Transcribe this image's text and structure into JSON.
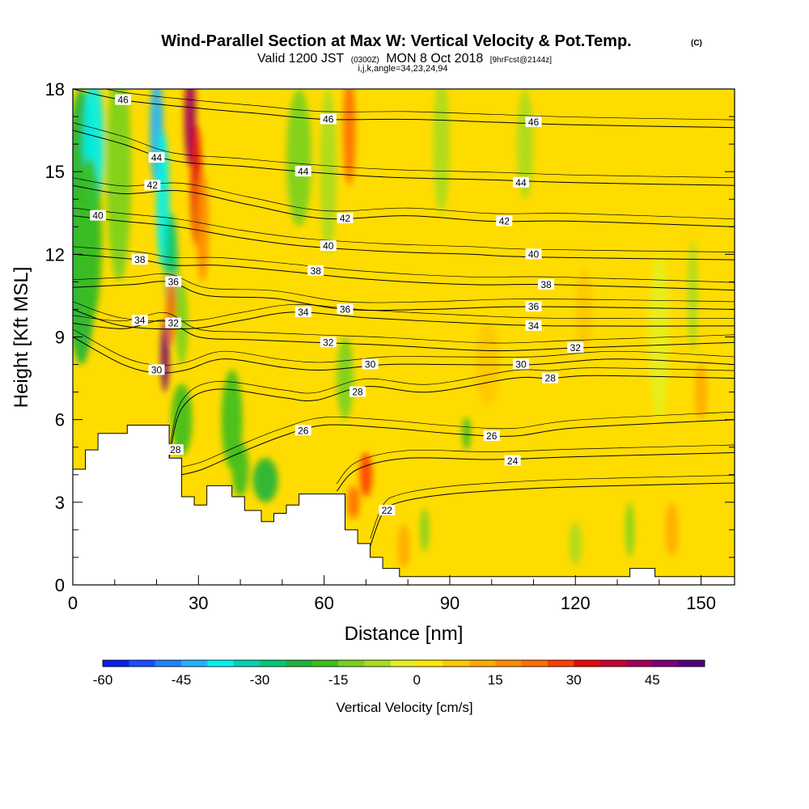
{
  "header": {
    "title": "Wind-Parallel Section at Max W: Vertical Velocity & Pot.Temp.",
    "title_mark": "(C)",
    "subtitle_a": "Valid 1200 JST",
    "subtitle_b": "(0300Z)",
    "subtitle_c": "MON 8 Oct 2018",
    "subtitle_d": "[9hrFcst@2144z]",
    "subtitle_e": "i,j,k,angle=34,23,24,94"
  },
  "chart_data": {
    "type": "heatmap",
    "xlabel": "Distance [nm]",
    "ylabel": "Height [Kft MSL]",
    "xlim": [
      0,
      158
    ],
    "ylim": [
      0,
      18
    ],
    "x_ticks": [
      0,
      30,
      60,
      90,
      120,
      150
    ],
    "y_ticks": [
      0,
      3,
      6,
      9,
      12,
      15,
      18
    ],
    "colorbar": {
      "label": "Vertical Velocity [cm/s]",
      "range": [
        -60,
        55
      ],
      "tick_values": [
        -60,
        -45,
        -30,
        -15,
        0,
        15,
        30,
        45
      ],
      "colors": [
        "#0a1ef0",
        "#1450ff",
        "#1e82ff",
        "#1eb4ff",
        "#00f0f0",
        "#00d2b4",
        "#00c878",
        "#1eb43c",
        "#3cbe1e",
        "#78d21e",
        "#aadc1e",
        "#e6f01e",
        "#ffe600",
        "#ffc800",
        "#ffaa00",
        "#ff8c00",
        "#ff6e00",
        "#ff3c00",
        "#e60a0a",
        "#c80032",
        "#a0005a",
        "#780078",
        "#50007d"
      ]
    },
    "terrain_kft": [
      [
        0,
        4.2
      ],
      [
        3,
        4.2
      ],
      [
        3,
        4.9
      ],
      [
        6,
        4.9
      ],
      [
        6,
        5.5
      ],
      [
        13,
        5.5
      ],
      [
        13,
        5.8
      ],
      [
        23,
        5.8
      ],
      [
        23,
        4.6
      ],
      [
        26,
        4.6
      ],
      [
        26,
        3.2
      ],
      [
        29,
        3.2
      ],
      [
        29,
        2.9
      ],
      [
        32,
        2.9
      ],
      [
        32,
        3.6
      ],
      [
        38,
        3.6
      ],
      [
        38,
        3.2
      ],
      [
        41,
        3.2
      ],
      [
        41,
        2.7
      ],
      [
        45,
        2.7
      ],
      [
        45,
        2.3
      ],
      [
        48,
        2.3
      ],
      [
        48,
        2.6
      ],
      [
        51,
        2.6
      ],
      [
        51,
        2.9
      ],
      [
        54,
        2.9
      ],
      [
        54,
        3.3
      ],
      [
        65,
        3.3
      ],
      [
        65,
        2.0
      ],
      [
        68,
        2.0
      ],
      [
        68,
        1.5
      ],
      [
        71,
        1.5
      ],
      [
        71,
        1.0
      ],
      [
        74,
        1.0
      ],
      [
        74,
        0.6
      ],
      [
        78,
        0.6
      ],
      [
        78,
        0.3
      ],
      [
        133,
        0.3
      ],
      [
        133,
        0.6
      ],
      [
        139,
        0.6
      ],
      [
        139,
        0.3
      ],
      [
        158,
        0.3
      ]
    ],
    "w_features": [
      {
        "x": 2,
        "z": 13,
        "value": -22,
        "sx": 4,
        "sz": 5
      },
      {
        "x": 5,
        "z": 16,
        "value": -38,
        "sx": 2.5,
        "sz": 2.5
      },
      {
        "x": 4,
        "z": 12.5,
        "value": -20,
        "sx": 3,
        "sz": 3
      },
      {
        "x": 11,
        "z": 15,
        "value": -12,
        "sx": 3,
        "sz": 4
      },
      {
        "x": 20,
        "z": 16.5,
        "value": -45,
        "sx": 1.6,
        "sz": 2
      },
      {
        "x": 21.5,
        "z": 14,
        "value": -40,
        "sx": 1.6,
        "sz": 2.5
      },
      {
        "x": 23.5,
        "z": 11.5,
        "value": -30,
        "sx": 1.6,
        "sz": 2
      },
      {
        "x": 26,
        "z": 9.5,
        "value": -15,
        "sx": 1.5,
        "sz": 1.5
      },
      {
        "x": 28,
        "z": 17,
        "value": 42,
        "sx": 1.4,
        "sz": 1.8
      },
      {
        "x": 29.5,
        "z": 14.5,
        "value": 32,
        "sx": 1.3,
        "sz": 2.2
      },
      {
        "x": 22,
        "z": 8.3,
        "value": 48,
        "sx": 1.0,
        "sz": 1.3
      },
      {
        "x": 23.5,
        "z": 10,
        "value": 22,
        "sx": 1.2,
        "sz": 1.3
      },
      {
        "x": 31,
        "z": 13,
        "value": 18,
        "sx": 1.5,
        "sz": 2
      },
      {
        "x": 26,
        "z": 6,
        "value": -18,
        "sx": 2.5,
        "sz": 1.3
      },
      {
        "x": 38,
        "z": 6,
        "value": -16,
        "sx": 2.5,
        "sz": 1.8
      },
      {
        "x": 46,
        "z": 3.8,
        "value": -22,
        "sx": 3,
        "sz": 0.8
      },
      {
        "x": 40,
        "z": 4.2,
        "value": -18,
        "sx": 2,
        "sz": 1
      },
      {
        "x": 54,
        "z": 15.5,
        "value": -14,
        "sx": 3,
        "sz": 2.5
      },
      {
        "x": 61,
        "z": 15,
        "value": -10,
        "sx": 2,
        "sz": 3
      },
      {
        "x": 66,
        "z": 16.5,
        "value": 20,
        "sx": 1.5,
        "sz": 2
      },
      {
        "x": 70,
        "z": 4,
        "value": 25,
        "sx": 1.5,
        "sz": 0.8
      },
      {
        "x": 67,
        "z": 3,
        "value": 20,
        "sx": 1.5,
        "sz": 0.6
      },
      {
        "x": 65,
        "z": 7.5,
        "value": -12,
        "sx": 2,
        "sz": 1.5
      },
      {
        "x": 94,
        "z": 5.5,
        "value": -18,
        "sx": 1,
        "sz": 0.6
      },
      {
        "x": 88,
        "z": 16,
        "value": -10,
        "sx": 2,
        "sz": 2.5
      },
      {
        "x": 108,
        "z": 16,
        "value": -6,
        "sx": 2,
        "sz": 2
      },
      {
        "x": 122,
        "z": 10,
        "value": 6,
        "sx": 2,
        "sz": 1.5
      },
      {
        "x": 140,
        "z": 9,
        "value": -5,
        "sx": 2.5,
        "sz": 3
      },
      {
        "x": 148,
        "z": 10.5,
        "value": -10,
        "sx": 1.2,
        "sz": 2
      },
      {
        "x": 150,
        "z": 7,
        "value": 12,
        "sx": 1.5,
        "sz": 1
      },
      {
        "x": 143,
        "z": 2,
        "value": 12,
        "sx": 1.5,
        "sz": 1
      },
      {
        "x": 133,
        "z": 2,
        "value": -12,
        "sx": 1,
        "sz": 1
      },
      {
        "x": 120,
        "z": 1.5,
        "value": -10,
        "sx": 1.5,
        "sz": 0.8
      },
      {
        "x": 84,
        "z": 2,
        "value": -12,
        "sx": 1,
        "sz": 0.8
      },
      {
        "x": 79,
        "z": 1.4,
        "value": 12,
        "sx": 1.5,
        "sz": 0.8
      },
      {
        "x": 99,
        "z": 8,
        "value": 6,
        "sx": 3,
        "sz": 1.5
      }
    ],
    "isotherms": [
      {
        "label": "22",
        "points": [
          [
            71,
            1.4
          ],
          [
            74,
            2.6
          ],
          [
            78,
            3.0
          ],
          [
            90,
            3.3
          ],
          [
            110,
            3.5
          ],
          [
            130,
            3.6
          ],
          [
            158,
            3.7
          ]
        ],
        "label_at": [
          75,
          2.7
        ]
      },
      {
        "label": "24",
        "points": [
          [
            63,
            3.4
          ],
          [
            68,
            4.2
          ],
          [
            80,
            4.6
          ],
          [
            100,
            4.55
          ],
          [
            120,
            4.65
          ],
          [
            158,
            4.8
          ]
        ],
        "label_at": [
          105,
          4.5
        ]
      },
      {
        "label": "26",
        "points": [
          [
            26,
            4.0
          ],
          [
            31,
            4.2
          ],
          [
            40,
            4.8
          ],
          [
            50,
            5.4
          ],
          [
            60,
            5.8
          ],
          [
            75,
            5.7
          ],
          [
            90,
            5.5
          ],
          [
            105,
            5.4
          ],
          [
            120,
            5.7
          ],
          [
            158,
            6.0
          ]
        ],
        "label_at": [
          55,
          5.6
        ]
      },
      {
        "label": "28",
        "points": [
          [
            23,
            4.6
          ],
          [
            26,
            6.4
          ],
          [
            34,
            7.1
          ],
          [
            50,
            6.8
          ],
          [
            58,
            6.7
          ],
          [
            70,
            7.2
          ],
          [
            85,
            7.0
          ],
          [
            105,
            7.5
          ],
          [
            114,
            7.5
          ],
          [
            125,
            7.6
          ],
          [
            158,
            7.5
          ]
        ],
        "label_at": [
          68,
          7.0
        ]
      },
      {
        "label": "30",
        "points": [
          [
            0,
            9.0
          ],
          [
            12,
            8.0
          ],
          [
            20,
            7.7
          ],
          [
            27,
            7.8
          ],
          [
            36,
            8.2
          ],
          [
            50,
            7.9
          ],
          [
            60,
            7.8
          ],
          [
            75,
            8.0
          ],
          [
            90,
            8.0
          ],
          [
            110,
            8.0
          ],
          [
            130,
            8.2
          ],
          [
            158,
            8.0
          ]
        ],
        "label_at": [
          20,
          7.8
        ]
      },
      {
        "label": "32",
        "points": [
          [
            0,
            9.5
          ],
          [
            12,
            9.3
          ],
          [
            22,
            9.6
          ],
          [
            30,
            9.0
          ],
          [
            42,
            8.9
          ],
          [
            58,
            8.8
          ],
          [
            75,
            8.7
          ],
          [
            100,
            8.5
          ],
          [
            120,
            8.6
          ],
          [
            158,
            8.8
          ]
        ],
        "label_at": [
          24,
          9.5
        ]
      },
      {
        "label": "34",
        "points": [
          [
            0,
            10.0
          ],
          [
            12,
            9.4
          ],
          [
            28,
            9.3
          ],
          [
            40,
            9.6
          ],
          [
            53,
            9.9
          ],
          [
            70,
            9.7
          ],
          [
            95,
            9.5
          ],
          [
            115,
            9.4
          ],
          [
            158,
            9.4
          ]
        ],
        "label_at": [
          16,
          9.6
        ]
      },
      {
        "label": "36",
        "points": [
          [
            0,
            10.8
          ],
          [
            14,
            10.9
          ],
          [
            23,
            11.0
          ],
          [
            32,
            10.5
          ],
          [
            48,
            10.4
          ],
          [
            65,
            10.0
          ],
          [
            85,
            10.0
          ],
          [
            110,
            10.1
          ],
          [
            158,
            10.0
          ]
        ],
        "label_at": [
          24,
          11.0
        ]
      },
      {
        "label": "38",
        "points": [
          [
            0,
            12.0
          ],
          [
            16,
            11.8
          ],
          [
            24,
            11.6
          ],
          [
            35,
            11.6
          ],
          [
            50,
            11.4
          ],
          [
            70,
            11.1
          ],
          [
            95,
            10.9
          ],
          [
            115,
            10.9
          ],
          [
            158,
            10.7
          ]
        ],
        "label_at": [
          16,
          11.8
        ]
      },
      {
        "label": "40",
        "points": [
          [
            0,
            13.4
          ],
          [
            12,
            13.2
          ],
          [
            25,
            13.0
          ],
          [
            40,
            12.6
          ],
          [
            55,
            12.3
          ],
          [
            75,
            12.1
          ],
          [
            95,
            12.0
          ],
          [
            110,
            11.9
          ],
          [
            158,
            11.8
          ]
        ],
        "label_at": [
          6,
          13.4
        ]
      },
      {
        "label": "42",
        "points": [
          [
            0,
            14.5
          ],
          [
            12,
            14.2
          ],
          [
            26,
            14.3
          ],
          [
            42,
            13.8
          ],
          [
            60,
            13.3
          ],
          [
            80,
            13.4
          ],
          [
            100,
            13.2
          ],
          [
            120,
            13.2
          ],
          [
            158,
            13.0
          ]
        ],
        "label_at": [
          19,
          14.5
        ]
      },
      {
        "label": "44",
        "points": [
          [
            0,
            16.5
          ],
          [
            12,
            16.0
          ],
          [
            24,
            15.4
          ],
          [
            40,
            15.2
          ],
          [
            55,
            15.0
          ],
          [
            75,
            14.8
          ],
          [
            100,
            14.7
          ],
          [
            120,
            14.6
          ],
          [
            158,
            14.5
          ]
        ],
        "label_at": [
          20,
          15.5
        ]
      },
      {
        "label": "46",
        "points": [
          [
            0,
            18.0
          ],
          [
            12,
            17.6
          ],
          [
            30,
            17.3
          ],
          [
            45,
            17.1
          ],
          [
            60,
            16.9
          ],
          [
            80,
            16.9
          ],
          [
            100,
            16.8
          ],
          [
            120,
            16.7
          ],
          [
            158,
            16.6
          ]
        ],
        "label_at": [
          12,
          17.6
        ]
      }
    ],
    "extra_labels": [
      {
        "label": "46",
        "x": 61,
        "z": 16.9
      },
      {
        "label": "46",
        "x": 110,
        "z": 16.8
      },
      {
        "label": "44",
        "x": 55,
        "z": 15.0
      },
      {
        "label": "44",
        "x": 107,
        "z": 14.6
      },
      {
        "label": "42",
        "x": 65,
        "z": 13.3
      },
      {
        "label": "42",
        "x": 103,
        "z": 13.2
      },
      {
        "label": "40",
        "x": 61,
        "z": 12.3
      },
      {
        "label": "40",
        "x": 110,
        "z": 12.0
      },
      {
        "label": "38",
        "x": 58,
        "z": 11.4
      },
      {
        "label": "38",
        "x": 113,
        "z": 10.9
      },
      {
        "label": "36",
        "x": 65,
        "z": 10.0
      },
      {
        "label": "36",
        "x": 110,
        "z": 10.1
      },
      {
        "label": "34",
        "x": 55,
        "z": 9.9
      },
      {
        "label": "34",
        "x": 110,
        "z": 9.4
      },
      {
        "label": "32",
        "x": 61,
        "z": 8.8
      },
      {
        "label": "32",
        "x": 120,
        "z": 8.6
      },
      {
        "label": "30",
        "x": 71,
        "z": 8.0
      },
      {
        "label": "30",
        "x": 107,
        "z": 8.0
      },
      {
        "label": "28",
        "x": 114,
        "z": 7.5
      },
      {
        "label": "26",
        "x": 100,
        "z": 5.4
      },
      {
        "label": "28",
        "x": 24.5,
        "z": 4.9
      }
    ]
  }
}
